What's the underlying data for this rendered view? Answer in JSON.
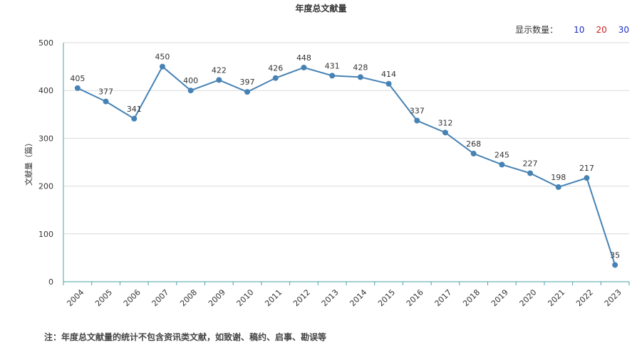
{
  "colors": {
    "line": "#4682b4",
    "axis": "#4aa0a8",
    "grid": "#d9d9d9",
    "opt10": "#1e2fc8",
    "opt20": "#d42020",
    "opt30": "#1e2fc8"
  },
  "controls": {
    "label": "显示数量：",
    "options": [
      "10",
      "20",
      "30"
    ]
  },
  "note": "注：年度总文献量的统计不包含资讯类文献，如致谢、稿约、启事、勘误等",
  "chart_data": {
    "type": "line",
    "title": "年度总文献量",
    "xlabel": "",
    "ylabel": "文献量（篇）",
    "ylim": [
      0,
      500
    ],
    "yticks": [
      0,
      100,
      200,
      300,
      400,
      500
    ],
    "grid": true,
    "categories": [
      "2004",
      "2005",
      "2006",
      "2007",
      "2008",
      "2009",
      "2010",
      "2011",
      "2012",
      "2013",
      "2014",
      "2015",
      "2016",
      "2017",
      "2018",
      "2019",
      "2020",
      "2021",
      "2022",
      "2023"
    ],
    "values": [
      405,
      377,
      341,
      450,
      400,
      422,
      397,
      426,
      448,
      431,
      428,
      414,
      337,
      312,
      268,
      245,
      227,
      198,
      217,
      35
    ]
  }
}
